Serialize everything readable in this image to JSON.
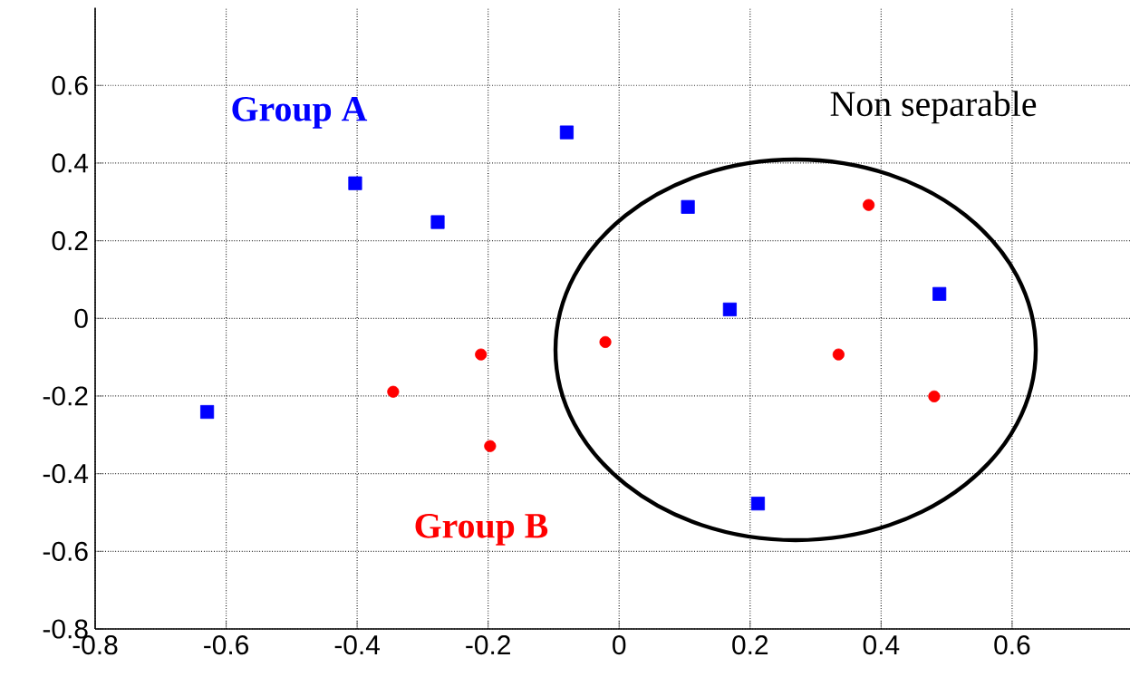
{
  "chart_data": {
    "type": "scatter",
    "xlim": [
      -0.8,
      0.78
    ],
    "ylim": [
      -0.8,
      0.8
    ],
    "xticks": [
      -0.8,
      -0.6,
      -0.4,
      -0.2,
      0,
      0.2,
      0.4,
      0.6
    ],
    "yticks": [
      -0.8,
      -0.6,
      -0.4,
      -0.2,
      0,
      0.2,
      0.4,
      0.6
    ],
    "grid": true,
    "legend": false,
    "annotations": [
      "Non separable"
    ],
    "series": [
      {
        "name": "Group A",
        "color": "#0000ff",
        "marker": "square",
        "x": [
          -0.629,
          -0.403,
          -0.277,
          -0.08,
          0.105,
          0.169,
          0.489,
          0.212
        ],
        "values": [
          -0.241,
          0.348,
          0.248,
          0.479,
          0.287,
          0.023,
          0.063,
          -0.477
        ]
      },
      {
        "name": "Group B",
        "color": "#ff0000",
        "marker": "circle",
        "x": [
          -0.345,
          -0.211,
          -0.197,
          -0.021,
          0.335,
          0.381,
          0.481
        ],
        "values": [
          -0.189,
          -0.093,
          -0.329,
          -0.061,
          -0.093,
          0.292,
          -0.201
        ]
      }
    ]
  }
}
